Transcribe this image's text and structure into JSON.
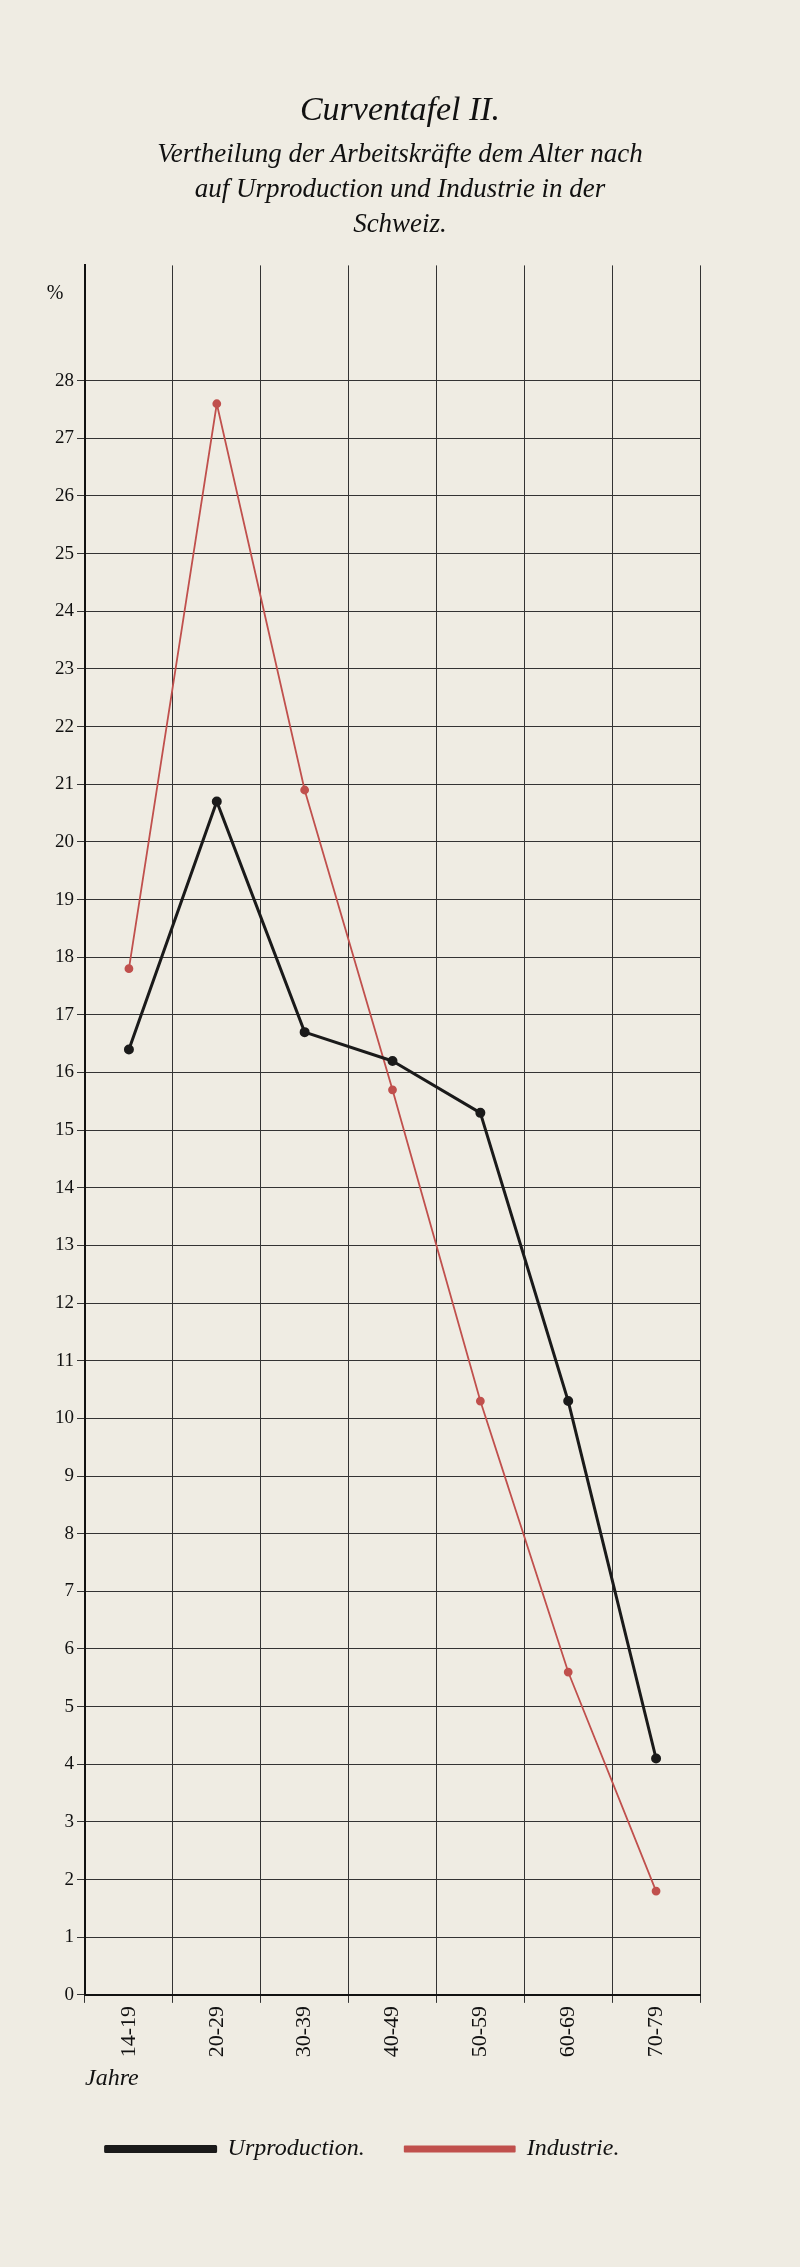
{
  "chart_data": {
    "type": "line",
    "title": "Curventafel II.",
    "subtitle": "Vertheilung der Arbeitskräfte dem Alter nach auf Urproduction und Industrie in der Schweiz.",
    "xlabel": "Jahre",
    "ylabel": "%",
    "categories": [
      "14-19",
      "20-29",
      "30-39",
      "40-49",
      "50-59",
      "60-69",
      "70-79"
    ],
    "series": [
      {
        "name": "Urproduction.",
        "color": "#1a1a1a",
        "values": [
          16.4,
          20.7,
          16.7,
          16.2,
          15.3,
          10.3,
          4.1
        ]
      },
      {
        "name": "Industrie.",
        "color": "#c0504d",
        "values": [
          17.8,
          27.6,
          20.9,
          15.7,
          10.3,
          5.6,
          1.8
        ]
      }
    ],
    "ylim": [
      0,
      30
    ],
    "yticks": [
      0,
      1,
      2,
      3,
      4,
      5,
      6,
      7,
      8,
      9,
      10,
      11,
      12,
      13,
      14,
      15,
      16,
      17,
      18,
      19,
      20,
      21,
      22,
      23,
      24,
      25,
      26,
      27,
      28
    ],
    "grid": true,
    "legend": "bottom",
    "marker": "circle",
    "line_style": "solid"
  }
}
